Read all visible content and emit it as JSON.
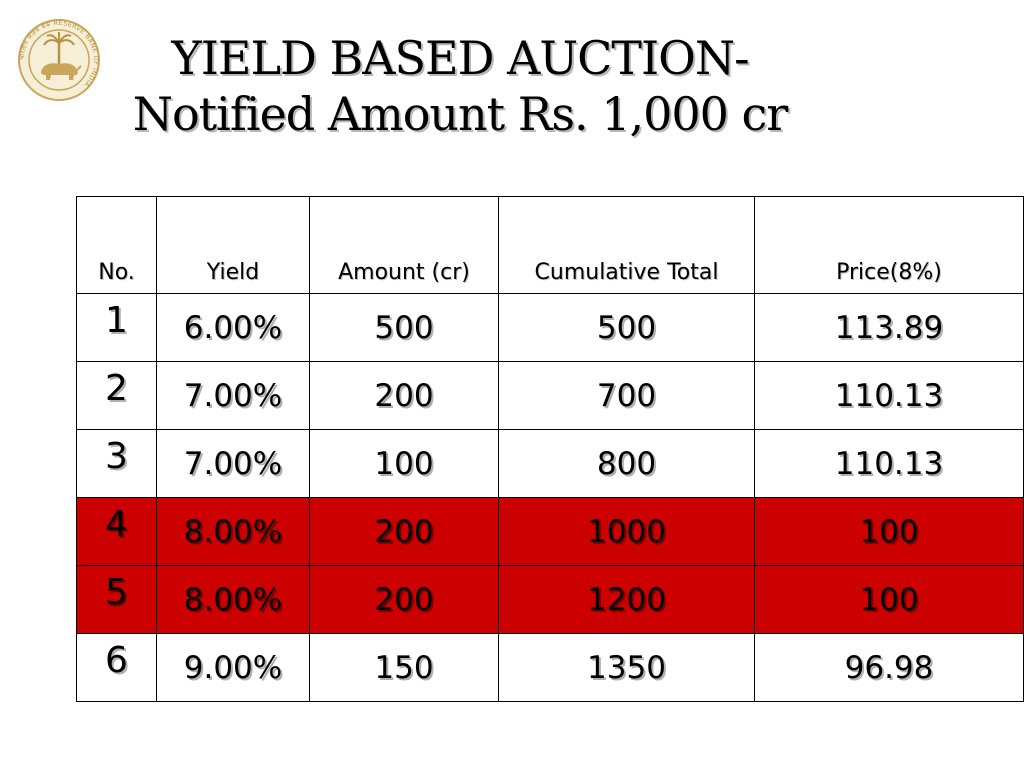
{
  "slide": {
    "title_line1": "YIELD  BASED AUCTION-",
    "title_line2": "Notified Amount Rs. 1,000 cr",
    "logo": {
      "icon": "rbi-emblem-icon",
      "ring_text": "भारतीय रिज़र्व बैंक RESERVE BANK OF INDIA"
    }
  },
  "table": {
    "headers": [
      "No.",
      "Yield",
      "Amount (cr)",
      "Cumulative Total",
      "Price(8%)"
    ],
    "rows": [
      {
        "no": "1",
        "yield": "6.00%",
        "amount": "500",
        "cumulative": "500",
        "price": "113.89",
        "highlight": false
      },
      {
        "no": "2",
        "yield": "7.00%",
        "amount": "200",
        "cumulative": "700",
        "price": "110.13",
        "highlight": false
      },
      {
        "no": "3",
        "yield": "7.00%",
        "amount": "100",
        "cumulative": "800",
        "price": "110.13",
        "highlight": false
      },
      {
        "no": "4",
        "yield": "8.00%",
        "amount": "200",
        "cumulative": "1000",
        "price": "100",
        "highlight": true
      },
      {
        "no": "5",
        "yield": "8.00%",
        "amount": "200",
        "cumulative": "1200",
        "price": "100",
        "highlight": true
      },
      {
        "no": "6",
        "yield": "9.00%",
        "amount": "150",
        "cumulative": "1350",
        "price": "96.98",
        "highlight": false
      }
    ],
    "highlight_color": "#cc0000"
  }
}
